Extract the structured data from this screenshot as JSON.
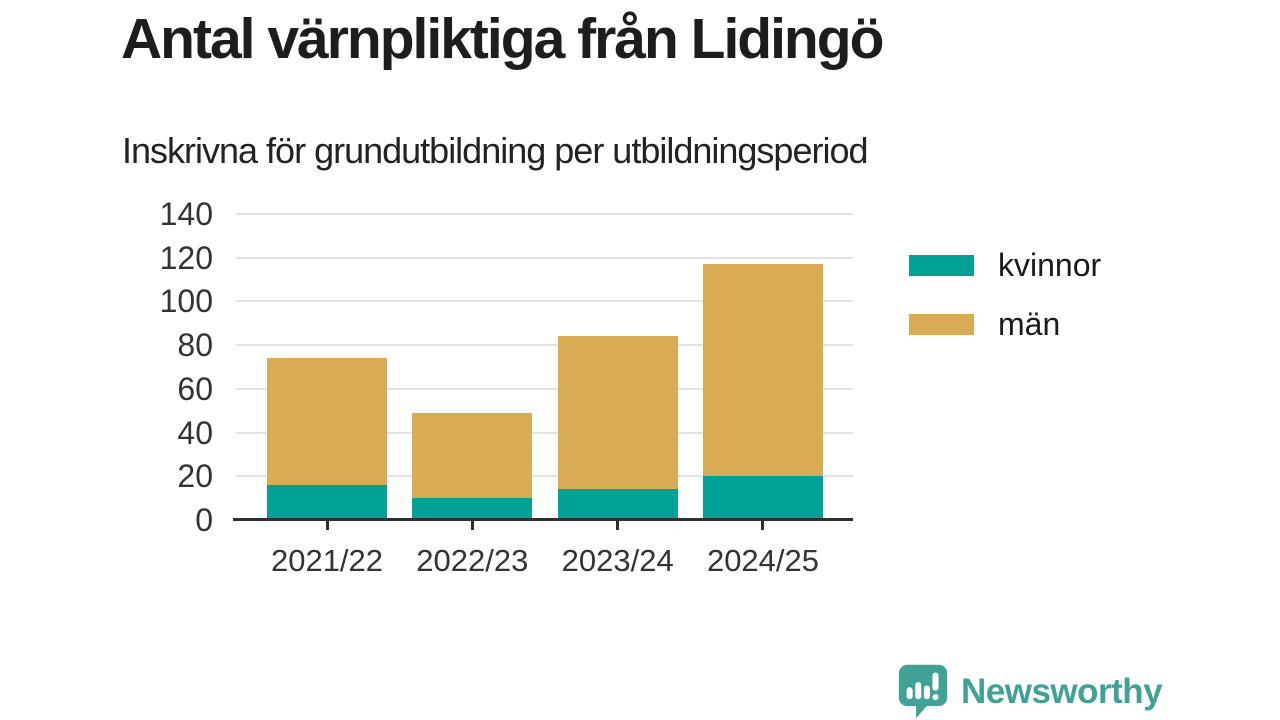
{
  "title": "Antal värnpliktiga från Lidingö",
  "subtitle": "Inskrivna för grundutbildning per utbildningsperiod",
  "colors": {
    "kvinnor": "#00a296",
    "man": "#d9ab55",
    "title_text": "#1d1d1b",
    "axis_text": "#333333",
    "axis_line": "#2f2f2f",
    "gridline": "#e3e3e3",
    "brand": "#3fa295",
    "background": "#ffffff"
  },
  "chart_data": {
    "type": "bar",
    "stacked": true,
    "title": "Antal värnpliktiga från Lidingö",
    "subtitle": "Inskrivna för grundutbildning per utbildningsperiod",
    "categories": [
      "2021/22",
      "2022/23",
      "2023/24",
      "2024/25"
    ],
    "series": [
      {
        "name": "kvinnor",
        "color": "#00a296",
        "values": [
          16,
          10,
          14,
          20
        ]
      },
      {
        "name": "män",
        "color": "#d9ab55",
        "values": [
          58,
          39,
          70,
          97
        ]
      }
    ],
    "totals": [
      74,
      49,
      84,
      117
    ],
    "xlabel": "",
    "ylabel": "",
    "ylim": [
      0,
      140
    ],
    "yticks": [
      0,
      20,
      40,
      60,
      80,
      100,
      120,
      140
    ],
    "grid": true,
    "legend_position": "right"
  },
  "legend": {
    "items": [
      {
        "label": "kvinnor",
        "color": "#00a296"
      },
      {
        "label": "män",
        "color": "#d9ab55"
      }
    ]
  },
  "branding": {
    "logo_text": "Newsworthy",
    "logo_icon": "bar-chart-speech-bubble-icon"
  }
}
